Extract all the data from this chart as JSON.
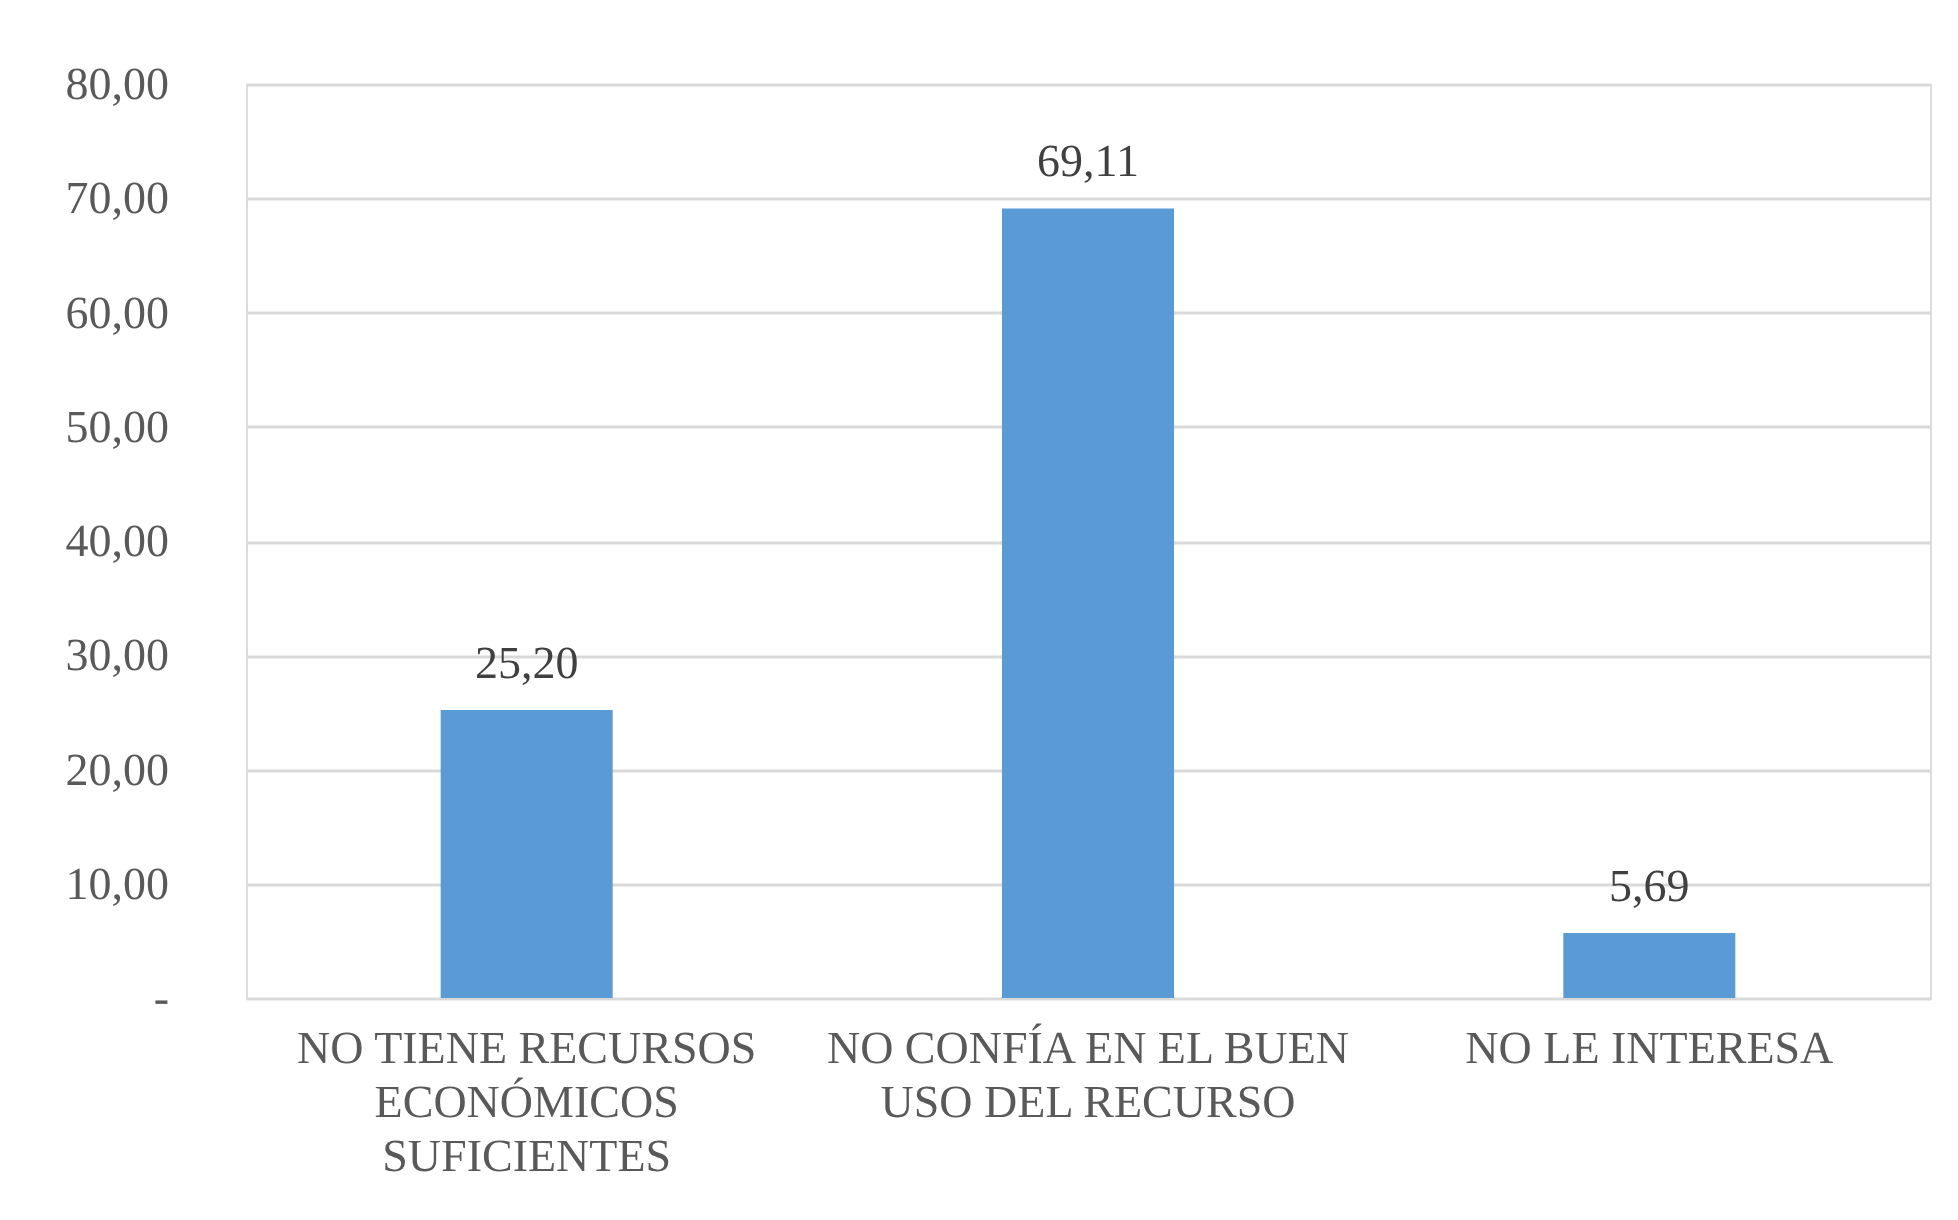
{
  "chart_data": {
    "type": "bar",
    "categories": [
      "NO TIENE RECURSOS ECONÓMICOS SUFICIENTES",
      "NO CONFÍA EN EL BUEN USO DEL RECURSO",
      "NO LE INTERESA"
    ],
    "values": [
      25.2,
      69.11,
      5.69
    ],
    "color": "#5b9bd5",
    "value_labels": [
      "25,20",
      "69,11",
      "5,69"
    ],
    "ylim": [
      0,
      80
    ],
    "yticks": [
      {
        "value": 0,
        "label": "-"
      },
      {
        "value": 10,
        "label": "10,00"
      },
      {
        "value": 20,
        "label": "20,00"
      },
      {
        "value": 30,
        "label": "30,00"
      },
      {
        "value": 40,
        "label": "40,00"
      },
      {
        "value": 50,
        "label": "50,00"
      },
      {
        "value": 60,
        "label": "60,00"
      },
      {
        "value": 70,
        "label": "70,00"
      },
      {
        "value": 80,
        "label": "80,00"
      }
    ],
    "grid": "y"
  }
}
